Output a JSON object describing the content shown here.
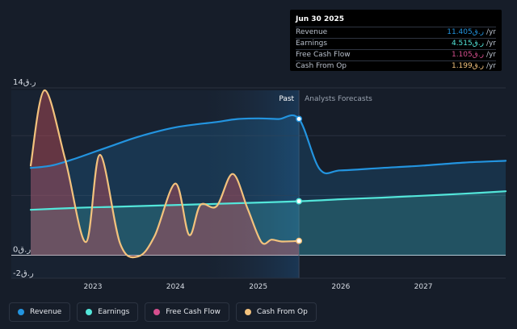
{
  "chart_data": {
    "type": "area",
    "y_axis": {
      "currency": "ر.ق",
      "ticks": [
        {
          "value": 14,
          "label": "14ر.ق"
        },
        {
          "value": 0,
          "label": "0ر.ق"
        },
        {
          "value": -2,
          "label": "-2ر.ق"
        }
      ],
      "ylim": [
        -2,
        14
      ]
    },
    "x_axis": {
      "ticks": [
        "2023",
        "2024",
        "2025",
        "2026",
        "2027"
      ],
      "range": [
        "2022-04-01",
        "2027-12-31"
      ]
    },
    "past_label": "Past",
    "forecast_label": "Analysts Forecasts",
    "divider_date": "2025-06-30",
    "series": [
      {
        "name": "Revenue",
        "color": "#2394df",
        "x": [
          "2022-04-01",
          "2022-07-01",
          "2022-10-01",
          "2023-01-01",
          "2023-04-01",
          "2023-07-01",
          "2023-10-01",
          "2024-01-01",
          "2024-04-01",
          "2024-07-01",
          "2024-10-01",
          "2025-01-01",
          "2025-04-01",
          "2025-06-30",
          "2025-09-30",
          "2025-12-31",
          "2026-06-30",
          "2026-12-31",
          "2027-06-30",
          "2027-12-31"
        ],
        "values": [
          7.3,
          7.5,
          8.0,
          8.6,
          9.2,
          9.8,
          10.3,
          10.7,
          10.95,
          11.15,
          11.4,
          11.45,
          11.4,
          11.405,
          7.2,
          7.1,
          7.3,
          7.5,
          7.75,
          7.9
        ]
      },
      {
        "name": "Earnings",
        "color": "#53e6da",
        "x": [
          "2022-04-01",
          "2022-10-01",
          "2023-04-01",
          "2023-10-01",
          "2024-04-01",
          "2024-10-01",
          "2025-06-30",
          "2025-12-31",
          "2026-06-30",
          "2026-12-31",
          "2027-06-30",
          "2027-12-31"
        ],
        "values": [
          3.8,
          3.95,
          4.05,
          4.15,
          4.25,
          4.35,
          4.515,
          4.68,
          4.82,
          4.98,
          5.15,
          5.35
        ]
      },
      {
        "name": "Free Cash Flow",
        "color": "#d64f8e",
        "x": [],
        "values": []
      },
      {
        "name": "Cash From Op",
        "color": "#f3c27d",
        "x": [
          "2022-04-01",
          "2022-06-01",
          "2022-09-01",
          "2022-12-01",
          "2023-02-01",
          "2023-05-01",
          "2023-07-20",
          "2023-10-01",
          "2024-01-01",
          "2024-03-01",
          "2024-04-20",
          "2024-07-01",
          "2024-09-10",
          "2024-11-15",
          "2025-01-15",
          "2025-03-01",
          "2025-04-15",
          "2025-06-30"
        ],
        "values": [
          7.5,
          13.8,
          8.0,
          1.1,
          8.4,
          1.0,
          -0.1,
          1.6,
          6.0,
          1.7,
          4.2,
          4.1,
          6.8,
          3.9,
          1.1,
          1.3,
          1.15,
          1.199
        ]
      }
    ],
    "markers": [
      {
        "series": "Revenue",
        "x": "2025-06-30",
        "value": 11.405
      },
      {
        "series": "Earnings",
        "x": "2025-06-30",
        "value": 4.515
      },
      {
        "series": "Cash From Op",
        "x": "2025-06-30",
        "value": 1.199
      }
    ]
  },
  "tooltip": {
    "date": "Jun 30 2025",
    "rows": [
      {
        "label": "Revenue",
        "value": "11.405ر.ق",
        "unit": "/yr",
        "color": "#2394df"
      },
      {
        "label": "Earnings",
        "value": "4.515ر.ق",
        "unit": "/yr",
        "color": "#53e6da"
      },
      {
        "label": "Free Cash Flow",
        "value": "1.105ر.ق",
        "unit": "/yr",
        "color": "#d64f8e"
      },
      {
        "label": "Cash From Op",
        "value": "1.199ر.ق",
        "unit": "/yr",
        "color": "#f3c27d"
      }
    ]
  },
  "legend": [
    {
      "label": "Revenue",
      "color": "#2394df"
    },
    {
      "label": "Earnings",
      "color": "#53e6da"
    },
    {
      "label": "Free Cash Flow",
      "color": "#d64f8e"
    },
    {
      "label": "Cash From Op",
      "color": "#f3c27d"
    }
  ]
}
